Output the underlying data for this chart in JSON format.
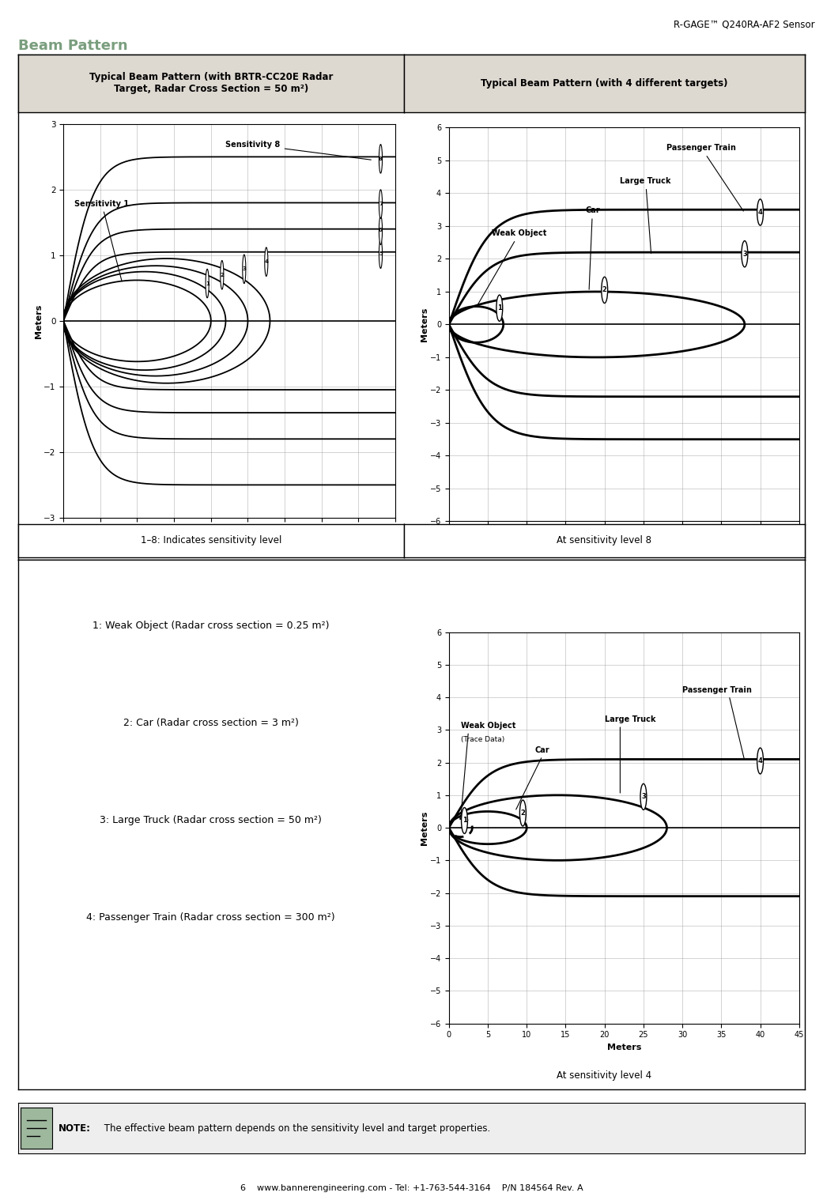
{
  "title_main": "Beam Pattern",
  "page_title": "R-GAGE™ Q240RA-AF2 Sensor",
  "footer_text": "6    www.bannerengineering.com - Tel: +1-763-544-3164    P/N 184564 Rev. A",
  "col1_title": "Typical Beam Pattern (with BRTR-CC20E Radar\nTarget, Radar Cross Section = 50 m²)",
  "col2_title": "Typical Beam Pattern (with 4 different targets)",
  "note_text": " The effective beam pattern depends on the sensitivity level and target properties.",
  "caption1": "1–8: Indicates sensitivity level",
  "caption2": "At sensitivity level 8",
  "caption3": "At sensitivity level 4",
  "legend_items": [
    "1: Weak Object (Radar cross section = 0.25 m²)",
    "2: Car (Radar cross section = 3 m²)",
    "3: Large Truck (Radar cross section = 50 m²)",
    "4: Passenger Train (Radar cross section = 300 m²)"
  ],
  "bg_white": "#ffffff",
  "bg_header": "#ddd8d0",
  "bg_note": "#eeeeee",
  "grid_color": "#999999",
  "line_color": "#000000",
  "heading_color": "#7a9e7e"
}
